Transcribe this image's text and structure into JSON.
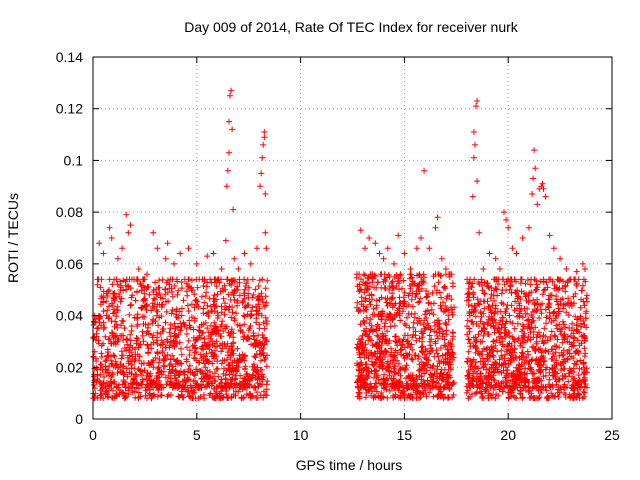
{
  "chart_data": {
    "type": "scatter",
    "title": "Day 009 of 2014, Rate Of TEC Index for receiver nurk",
    "xlabel": "GPS time / hours",
    "ylabel": "ROTI / TECUs",
    "xlim": [
      0,
      25
    ],
    "ylim": [
      0,
      0.14
    ],
    "xticks": [
      0,
      5,
      10,
      15,
      20,
      25
    ],
    "xtick_labels": [
      "0",
      "5",
      "10",
      "15",
      "20",
      "25"
    ],
    "yticks": [
      0,
      0.02,
      0.04,
      0.06,
      0.08,
      0.1,
      0.12,
      0.14
    ],
    "ytick_labels": [
      "0",
      "0.02",
      "0.04",
      "0.06",
      "0.08",
      "0.1",
      "0.12",
      "0.14"
    ],
    "grid": true,
    "marker": "+",
    "color": "#ff0000",
    "series": [
      {
        "name": "ROTI",
        "points": [
          [
            0.3,
            0.068
          ],
          [
            0.5,
            0.064
          ],
          [
            0.8,
            0.074
          ],
          [
            0.9,
            0.07
          ],
          [
            1.2,
            0.062
          ],
          [
            1.4,
            0.066
          ],
          [
            1.6,
            0.079
          ],
          [
            1.7,
            0.072
          ],
          [
            1.8,
            0.075
          ],
          [
            2.2,
            0.058
          ],
          [
            2.6,
            0.056
          ],
          [
            2.9,
            0.072
          ],
          [
            3.1,
            0.066
          ],
          [
            3.5,
            0.062
          ],
          [
            3.6,
            0.068
          ],
          [
            3.9,
            0.06
          ],
          [
            4.2,
            0.064
          ],
          [
            4.6,
            0.066
          ],
          [
            5.0,
            0.06
          ],
          [
            5.5,
            0.063
          ],
          [
            5.8,
            0.064
          ],
          [
            6.2,
            0.058
          ],
          [
            6.4,
            0.069
          ],
          [
            6.45,
            0.09
          ],
          [
            6.5,
            0.096
          ],
          [
            6.55,
            0.103
          ],
          [
            6.55,
            0.115
          ],
          [
            6.6,
            0.125
          ],
          [
            6.65,
            0.127
          ],
          [
            6.7,
            0.112
          ],
          [
            6.75,
            0.081
          ],
          [
            6.8,
            0.062
          ],
          [
            7.0,
            0.058
          ],
          [
            7.3,
            0.064
          ],
          [
            7.6,
            0.06
          ],
          [
            7.9,
            0.066
          ],
          [
            8.05,
            0.09
          ],
          [
            8.1,
            0.095
          ],
          [
            8.15,
            0.101
          ],
          [
            8.2,
            0.106
          ],
          [
            8.25,
            0.109
          ],
          [
            8.25,
            0.111
          ],
          [
            8.3,
            0.087
          ],
          [
            8.3,
            0.072
          ],
          [
            8.35,
            0.066
          ],
          [
            12.9,
            0.073
          ],
          [
            13.1,
            0.066
          ],
          [
            13.3,
            0.07
          ],
          [
            13.6,
            0.068
          ],
          [
            13.8,
            0.064
          ],
          [
            14.0,
            0.062
          ],
          [
            14.2,
            0.066
          ],
          [
            14.5,
            0.06
          ],
          [
            14.7,
            0.071
          ],
          [
            15.0,
            0.064
          ],
          [
            15.3,
            0.058
          ],
          [
            15.6,
            0.066
          ],
          [
            15.8,
            0.07
          ],
          [
            15.95,
            0.096
          ],
          [
            16.2,
            0.066
          ],
          [
            16.5,
            0.074
          ],
          [
            16.6,
            0.078
          ],
          [
            16.8,
            0.062
          ],
          [
            17.0,
            0.058
          ],
          [
            17.2,
            0.056
          ],
          [
            18.3,
            0.086
          ],
          [
            18.35,
            0.101
          ],
          [
            18.35,
            0.111
          ],
          [
            18.4,
            0.106
          ],
          [
            18.45,
            0.121
          ],
          [
            18.5,
            0.123
          ],
          [
            18.5,
            0.092
          ],
          [
            18.6,
            0.072
          ],
          [
            18.8,
            0.058
          ],
          [
            19.1,
            0.064
          ],
          [
            19.4,
            0.062
          ],
          [
            19.6,
            0.058
          ],
          [
            19.8,
            0.08
          ],
          [
            19.9,
            0.077
          ],
          [
            20.0,
            0.074
          ],
          [
            20.2,
            0.066
          ],
          [
            20.4,
            0.064
          ],
          [
            20.7,
            0.07
          ],
          [
            21.0,
            0.074
          ],
          [
            21.15,
            0.087
          ],
          [
            21.2,
            0.093
          ],
          [
            21.25,
            0.104
          ],
          [
            21.3,
            0.097
          ],
          [
            21.4,
            0.083
          ],
          [
            21.5,
            0.089
          ],
          [
            21.6,
            0.09
          ],
          [
            21.65,
            0.091
          ],
          [
            21.7,
            0.089
          ],
          [
            21.8,
            0.086
          ],
          [
            22.0,
            0.071
          ],
          [
            22.2,
            0.066
          ],
          [
            22.5,
            0.062
          ],
          [
            22.8,
            0.058
          ],
          [
            23.3,
            0.057
          ],
          [
            23.6,
            0.06
          ],
          [
            23.7,
            0.058
          ]
        ],
        "bands": [
          {
            "x": [
              0.0,
              8.4
            ],
            "low": 0.004,
            "high": 0.05,
            "density": 1400
          },
          {
            "x": [
              12.7,
              17.4
            ],
            "low": 0.004,
            "high": 0.052,
            "density": 950
          },
          {
            "x": [
              18.0,
              23.8
            ],
            "low": 0.004,
            "high": 0.05,
            "density": 1100
          }
        ]
      }
    ]
  }
}
